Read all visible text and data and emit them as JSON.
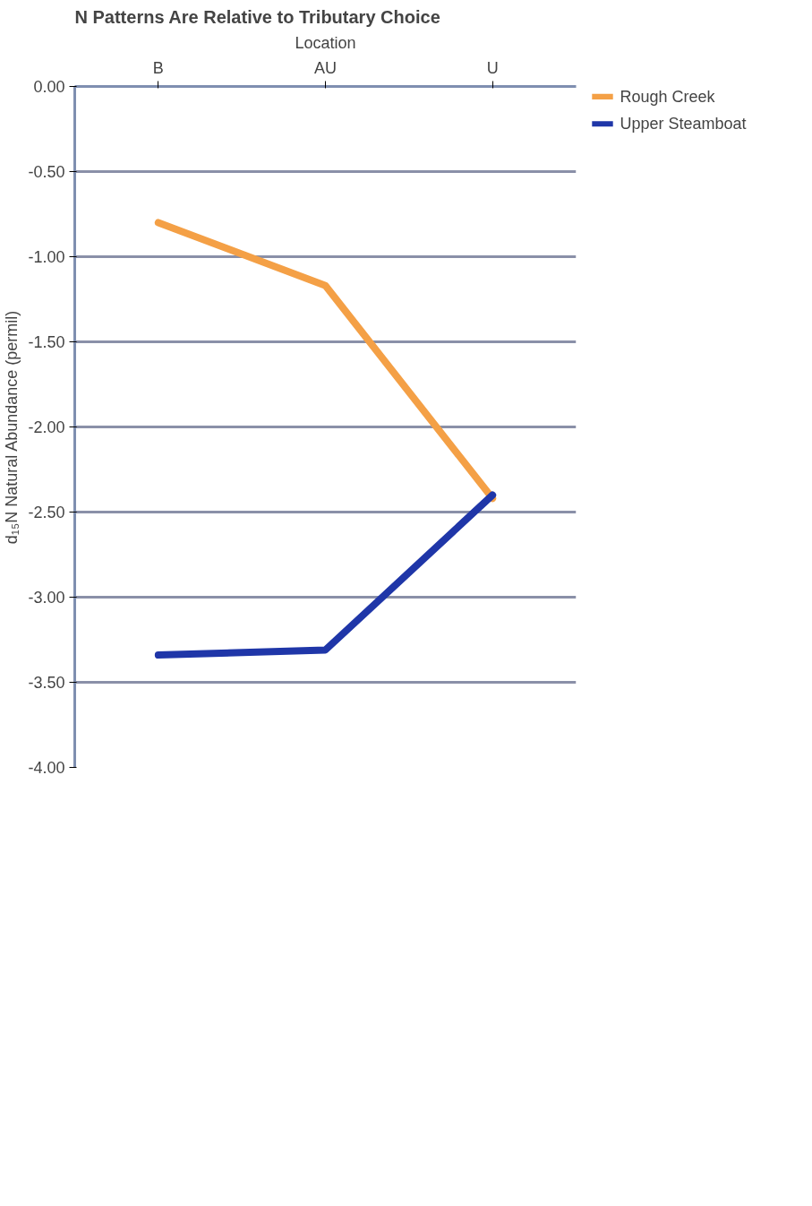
{
  "chart_data": {
    "type": "line",
    "title": "N Patterns Are Relative to Tributary Choice",
    "xlabel": "Location",
    "ylabel": "d₁₅N Natural Abundance (permil)",
    "categories": [
      "B",
      "AU",
      "U"
    ],
    "series": [
      {
        "name": "Rough Creek",
        "color": "#f4a046",
        "values": [
          -0.8,
          -1.17,
          -2.42
        ]
      },
      {
        "name": "Upper Steamboat",
        "color": "#1f36a8",
        "values": [
          -3.34,
          -3.31,
          -2.4
        ]
      }
    ],
    "ylim": [
      -4,
      0
    ],
    "yticks": [
      {
        "value": 0,
        "label": "0.00"
      },
      {
        "value": -0.5,
        "label": "-0.50"
      },
      {
        "value": -1,
        "label": "-1.00"
      },
      {
        "value": -1.5,
        "label": "-1.50"
      },
      {
        "value": -2,
        "label": "-2.00"
      },
      {
        "value": -2.5,
        "label": "-2.50"
      },
      {
        "value": -3,
        "label": "-3.00"
      },
      {
        "value": -3.5,
        "label": "-3.50"
      },
      {
        "value": -4,
        "label": "-4.00"
      }
    ],
    "grid": "y",
    "legend": "right",
    "marker": "none",
    "line_style": "solid"
  }
}
